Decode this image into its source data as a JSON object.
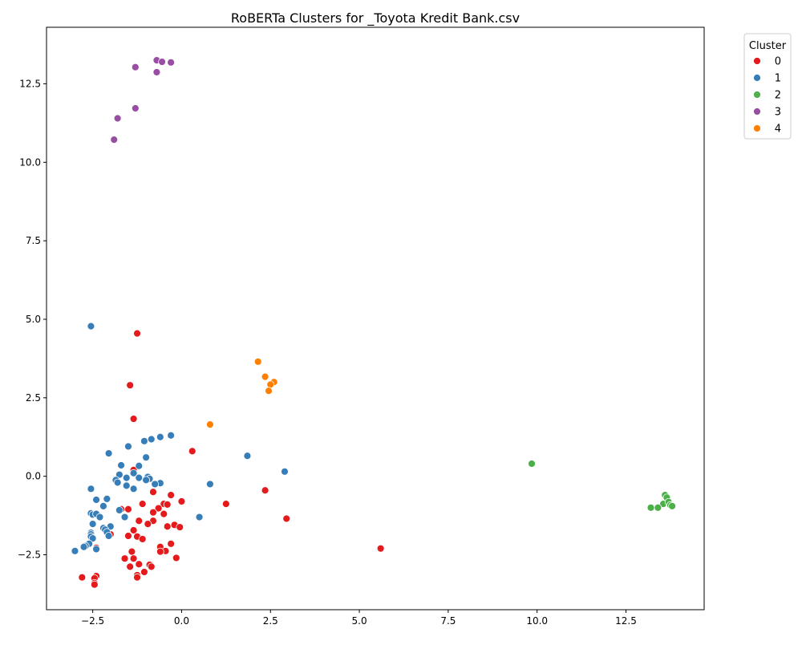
{
  "chart_data": {
    "type": "scatter",
    "title": "RoBERTa Clusters for _Toyota Kredit Bank.csv",
    "xlabel": "",
    "ylabel": "",
    "xlim": [
      -3.8,
      14.7
    ],
    "ylim": [
      -4.25,
      14.3
    ],
    "x_ticks": [
      -2.5,
      0.0,
      2.5,
      5.0,
      7.5,
      10.0,
      12.5
    ],
    "x_tick_labels": [
      "−2.5",
      "0.0",
      "2.5",
      "5.0",
      "7.5",
      "10.0",
      "12.5"
    ],
    "y_ticks": [
      -2.5,
      0.0,
      2.5,
      5.0,
      7.5,
      10.0,
      12.5
    ],
    "y_tick_labels": [
      "−2.5",
      "0.0",
      "2.5",
      "5.0",
      "7.5",
      "10.0",
      "12.5"
    ],
    "grid": false,
    "legend": {
      "title": "Cluster",
      "placement": "upper-right-outside"
    },
    "series": [
      {
        "name": "0",
        "color": "#e41a1c",
        "points": [
          [
            -1.25,
            4.55
          ],
          [
            -1.45,
            2.9
          ],
          [
            -1.35,
            1.83
          ],
          [
            0.3,
            0.8
          ],
          [
            -1.35,
            0.2
          ],
          [
            2.35,
            -0.45
          ],
          [
            1.25,
            -0.88
          ],
          [
            2.95,
            -1.35
          ],
          [
            5.6,
            -2.3
          ],
          [
            -0.8,
            -0.5
          ],
          [
            -0.3,
            -0.6
          ],
          [
            0.0,
            -0.8
          ],
          [
            -1.1,
            -0.88
          ],
          [
            -0.5,
            -0.88
          ],
          [
            -0.4,
            -0.9
          ],
          [
            -0.65,
            -1.02
          ],
          [
            -1.7,
            -1.05
          ],
          [
            -1.5,
            -1.05
          ],
          [
            -0.8,
            -1.15
          ],
          [
            -0.5,
            -1.2
          ],
          [
            -1.2,
            -1.42
          ],
          [
            -0.8,
            -1.42
          ],
          [
            -0.95,
            -1.52
          ],
          [
            -0.2,
            -1.55
          ],
          [
            -0.4,
            -1.6
          ],
          [
            -0.05,
            -1.62
          ],
          [
            -1.35,
            -1.72
          ],
          [
            -1.5,
            -1.9
          ],
          [
            -1.25,
            -1.92
          ],
          [
            -1.1,
            -2.0
          ],
          [
            -2.0,
            -1.85
          ],
          [
            -0.3,
            -2.15
          ],
          [
            -0.6,
            -2.25
          ],
          [
            -2.4,
            -2.28
          ],
          [
            -0.45,
            -2.38
          ],
          [
            -0.6,
            -2.4
          ],
          [
            -1.4,
            -2.4
          ],
          [
            -1.6,
            -2.62
          ],
          [
            -1.35,
            -2.62
          ],
          [
            -0.15,
            -2.6
          ],
          [
            -1.2,
            -2.8
          ],
          [
            -0.9,
            -2.82
          ],
          [
            -0.85,
            -2.88
          ],
          [
            -1.45,
            -2.88
          ],
          [
            -1.05,
            -3.05
          ],
          [
            -1.25,
            -3.15
          ],
          [
            -1.25,
            -3.22
          ],
          [
            -2.4,
            -3.18
          ],
          [
            -2.45,
            -3.25
          ],
          [
            -2.8,
            -3.22
          ],
          [
            -2.45,
            -3.4
          ],
          [
            -2.45,
            -3.45
          ]
        ]
      },
      {
        "name": "1",
        "color": "#377eb8",
        "points": [
          [
            -2.55,
            4.78
          ],
          [
            -1.5,
            0.95
          ],
          [
            -0.3,
            1.3
          ],
          [
            -0.6,
            1.25
          ],
          [
            -0.85,
            1.18
          ],
          [
            -1.05,
            1.12
          ],
          [
            -2.05,
            0.73
          ],
          [
            1.85,
            0.65
          ],
          [
            -1.0,
            0.6
          ],
          [
            -1.7,
            0.35
          ],
          [
            -1.2,
            0.33
          ],
          [
            2.9,
            0.15
          ],
          [
            -1.35,
            0.1
          ],
          [
            -1.75,
            0.05
          ],
          [
            -1.55,
            -0.05
          ],
          [
            -1.2,
            -0.05
          ],
          [
            -0.95,
            -0.02
          ],
          [
            -0.9,
            -0.08
          ],
          [
            -1.0,
            -0.12
          ],
          [
            -1.85,
            -0.12
          ],
          [
            -1.8,
            -0.2
          ],
          [
            -0.6,
            -0.22
          ],
          [
            -0.75,
            -0.25
          ],
          [
            0.8,
            -0.25
          ],
          [
            -1.55,
            -0.3
          ],
          [
            -1.35,
            -0.4
          ],
          [
            -2.55,
            -0.4
          ],
          [
            -2.4,
            -0.75
          ],
          [
            -2.1,
            -0.72
          ],
          [
            -2.2,
            -0.95
          ],
          [
            -1.75,
            -1.08
          ],
          [
            -2.55,
            -1.18
          ],
          [
            -2.5,
            -1.22
          ],
          [
            -2.4,
            -1.2
          ],
          [
            -2.3,
            -1.3
          ],
          [
            -1.6,
            -1.3
          ],
          [
            0.5,
            -1.3
          ],
          [
            -2.5,
            -1.52
          ],
          [
            -2.0,
            -1.6
          ],
          [
            -2.2,
            -1.65
          ],
          [
            -2.15,
            -1.7
          ],
          [
            -2.1,
            -1.78
          ],
          [
            -2.55,
            -1.8
          ],
          [
            -2.55,
            -1.85
          ],
          [
            -2.05,
            -1.9
          ],
          [
            -2.55,
            -1.92
          ],
          [
            -2.5,
            -1.98
          ],
          [
            -2.6,
            -2.15
          ],
          [
            -2.7,
            -2.22
          ],
          [
            -2.75,
            -2.25
          ],
          [
            -2.4,
            -2.32
          ],
          [
            -3.0,
            -2.38
          ]
        ]
      },
      {
        "name": "2",
        "color": "#4daf4a",
        "points": [
          [
            9.85,
            0.4
          ],
          [
            13.6,
            -0.6
          ],
          [
            13.65,
            -0.68
          ],
          [
            13.55,
            -0.88
          ],
          [
            13.7,
            -0.82
          ],
          [
            13.75,
            -0.92
          ],
          [
            13.8,
            -0.95
          ],
          [
            13.2,
            -1.0
          ],
          [
            13.4,
            -1.0
          ]
        ]
      },
      {
        "name": "3",
        "color": "#984ea3",
        "points": [
          [
            -0.7,
            13.25
          ],
          [
            -0.55,
            13.2
          ],
          [
            -0.3,
            13.18
          ],
          [
            -1.3,
            13.03
          ],
          [
            -0.7,
            12.87
          ],
          [
            -1.3,
            11.72
          ],
          [
            -1.8,
            11.4
          ],
          [
            -1.9,
            10.72
          ]
        ]
      },
      {
        "name": "4",
        "color": "#ff7f00",
        "points": [
          [
            2.15,
            3.65
          ],
          [
            2.35,
            3.17
          ],
          [
            2.6,
            3.0
          ],
          [
            2.5,
            2.92
          ],
          [
            2.45,
            2.72
          ],
          [
            0.8,
            1.65
          ]
        ]
      }
    ]
  }
}
